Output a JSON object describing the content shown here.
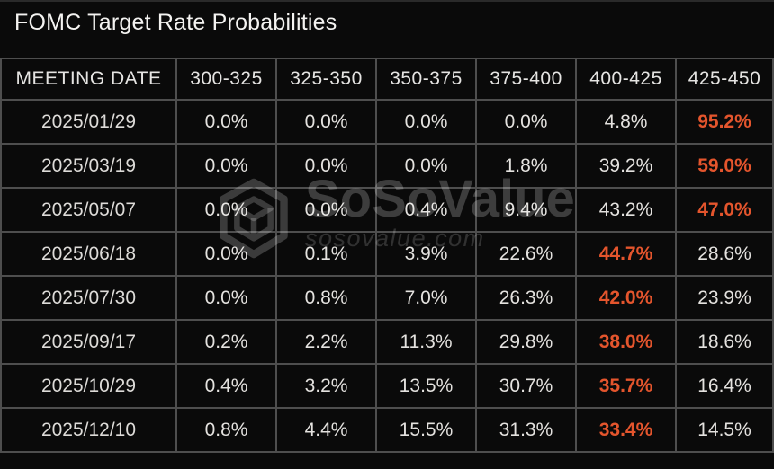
{
  "title": "FOMC Target Rate Probabilities",
  "watermark": {
    "brand": "SoSoValue",
    "website": "sosovalue.com"
  },
  "colors": {
    "background": "#0a0a0a",
    "grid": "#4e4e4e",
    "title_text": "#f4f3f1",
    "header_text": "#e5e4e2",
    "value_text": "#e4e2df",
    "highlight": "#e4552d",
    "watermark": "rgba(255,255,255,0.21)"
  },
  "chart_data": {
    "type": "table",
    "title": "FOMC Target Rate Probabilities",
    "columns": [
      "MEETING DATE",
      "300-325",
      "325-350",
      "350-375",
      "375-400",
      "400-425",
      "425-450"
    ],
    "rows": [
      {
        "date": "2025/01/29",
        "values": [
          "0.0%",
          "0.0%",
          "0.0%",
          "0.0%",
          "4.8%",
          "95.2%"
        ],
        "highlight_index": 5
      },
      {
        "date": "2025/03/19",
        "values": [
          "0.0%",
          "0.0%",
          "0.0%",
          "1.8%",
          "39.2%",
          "59.0%"
        ],
        "highlight_index": 5
      },
      {
        "date": "2025/05/07",
        "values": [
          "0.0%",
          "0.0%",
          "0.4%",
          "9.4%",
          "43.2%",
          "47.0%"
        ],
        "highlight_index": 5
      },
      {
        "date": "2025/06/18",
        "values": [
          "0.0%",
          "0.1%",
          "3.9%",
          "22.6%",
          "44.7%",
          "28.6%"
        ],
        "highlight_index": 4
      },
      {
        "date": "2025/07/30",
        "values": [
          "0.0%",
          "0.8%",
          "7.0%",
          "26.3%",
          "42.0%",
          "23.9%"
        ],
        "highlight_index": 4
      },
      {
        "date": "2025/09/17",
        "values": [
          "0.2%",
          "2.2%",
          "11.3%",
          "29.8%",
          "38.0%",
          "18.6%"
        ],
        "highlight_index": 4
      },
      {
        "date": "2025/10/29",
        "values": [
          "0.4%",
          "3.2%",
          "13.5%",
          "30.7%",
          "35.7%",
          "16.4%"
        ],
        "highlight_index": 4
      },
      {
        "date": "2025/12/10",
        "values": [
          "0.8%",
          "4.4%",
          "15.5%",
          "31.3%",
          "33.4%",
          "14.5%"
        ],
        "highlight_index": 4
      }
    ]
  }
}
